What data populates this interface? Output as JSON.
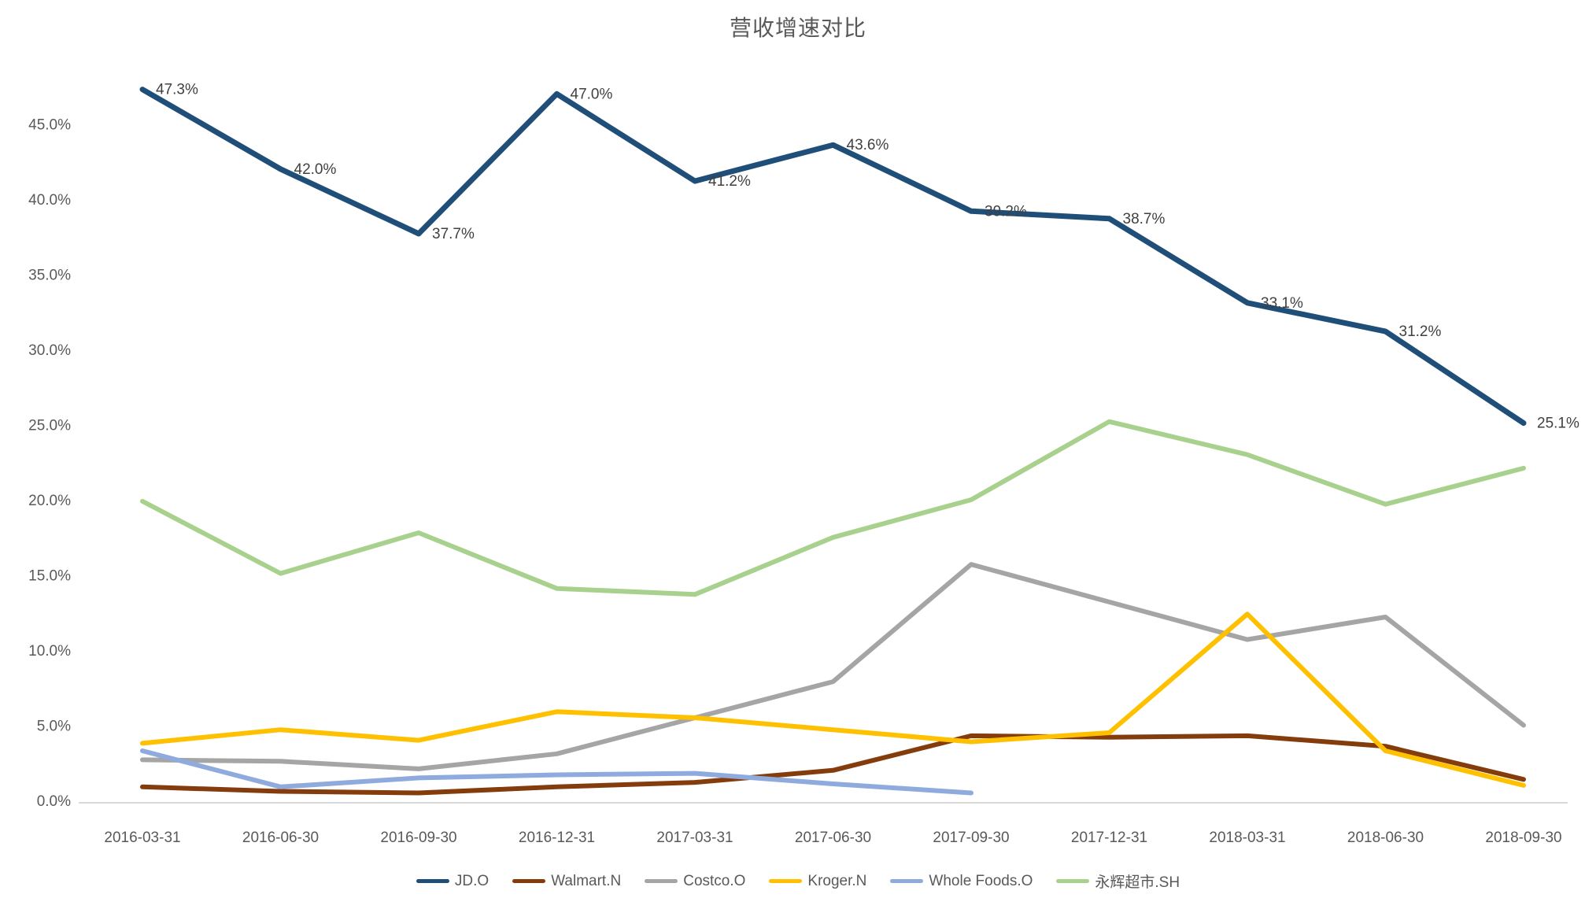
{
  "chart": {
    "title": "营收增速对比"
  },
  "chart_data": {
    "type": "line",
    "title": "营收增速对比",
    "categories": [
      "2016-03-31",
      "2016-06-30",
      "2016-09-30",
      "2016-12-31",
      "2017-03-31",
      "2017-06-30",
      "2017-09-30",
      "2017-12-31",
      "2018-03-31",
      "2018-06-30",
      "2018-09-30"
    ],
    "series": [
      {
        "name": "JD.O",
        "color": "#1F4E79",
        "stroke_width": 7,
        "values": [
          47.3,
          42.0,
          37.7,
          47.0,
          41.2,
          43.6,
          39.2,
          38.7,
          33.1,
          31.2,
          25.1
        ],
        "point_labels": [
          "47.3%",
          "42.0%",
          "37.7%",
          "47.0%",
          "41.2%",
          "43.6%",
          "39.2%",
          "38.7%",
          "33.1%",
          "31.2%",
          "25.1%"
        ]
      },
      {
        "name": "Walmart.N",
        "color": "#843C0C",
        "stroke_width": 6,
        "values": [
          0.9,
          0.6,
          0.5,
          0.9,
          1.2,
          2.0,
          4.3,
          4.2,
          4.3,
          3.6,
          1.4
        ]
      },
      {
        "name": "Costco.O",
        "color": "#A5A5A5",
        "stroke_width": 6,
        "values": [
          2.7,
          2.6,
          2.1,
          3.1,
          5.5,
          7.9,
          15.7,
          13.2,
          10.7,
          12.2,
          5.0
        ]
      },
      {
        "name": "Kroger.N",
        "color": "#FFC000",
        "stroke_width": 6,
        "values": [
          3.8,
          4.7,
          4.0,
          5.9,
          5.5,
          4.7,
          3.9,
          4.5,
          12.4,
          3.3,
          1.0
        ]
      },
      {
        "name": "Whole Foods.O",
        "color": "#8FAADC",
        "stroke_width": 6,
        "values": [
          3.3,
          0.9,
          1.5,
          1.7,
          1.8,
          1.1,
          0.5,
          null,
          null,
          null,
          null
        ]
      },
      {
        "name": "永辉超市.SH",
        "color": "#A9D18E",
        "stroke_width": 6,
        "values": [
          19.9,
          15.1,
          17.8,
          14.1,
          13.7,
          17.5,
          20.0,
          25.2,
          23.0,
          19.7,
          22.1
        ]
      }
    ],
    "yticks": [
      "0.0%",
      "5.0%",
      "10.0%",
      "15.0%",
      "20.0%",
      "25.0%",
      "30.0%",
      "35.0%",
      "40.0%",
      "45.0%"
    ],
    "ytick_values": [
      0,
      5,
      10,
      15,
      20,
      25,
      30,
      35,
      40,
      45
    ],
    "ylim": [
      0,
      47.5
    ],
    "xlabel": "",
    "ylabel": "",
    "grid": false,
    "legend_position": "bottom",
    "axis_color": "#D9D9D9",
    "tick_text_color": "#595959",
    "point_label_color": "#404040"
  }
}
